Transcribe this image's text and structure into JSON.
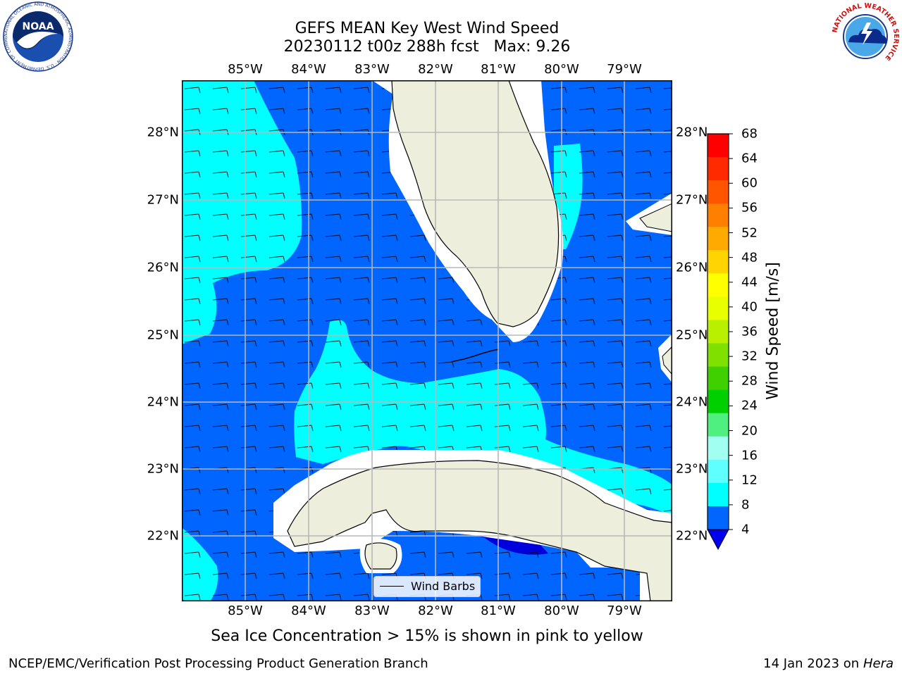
{
  "title": {
    "line1": "GEFS MEAN Key West Wind Speed",
    "line2": "20230112 t00z 288h fcst   Max: 9.26"
  },
  "map": {
    "lon_labels": [
      "85°W",
      "84°W",
      "83°W",
      "82°W",
      "81°W",
      "80°W",
      "79°W"
    ],
    "lat_labels": [
      "28°N",
      "27°N",
      "26°N",
      "25°N",
      "24°N",
      "23°N",
      "22°N"
    ],
    "legend_label": "Wind Barbs"
  },
  "colorbar": {
    "label": "Wind Speed [m/s]",
    "ticks": [
      "68",
      "64",
      "60",
      "56",
      "52",
      "48",
      "44",
      "40",
      "36",
      "32",
      "28",
      "24",
      "20",
      "16",
      "12",
      "8",
      "4"
    ],
    "colors": [
      "#ff0000",
      "#ff2a00",
      "#ff5500",
      "#ff7f00",
      "#ffaa00",
      "#ffd400",
      "#ffff00",
      "#e8ff00",
      "#b8f000",
      "#80e000",
      "#40d000",
      "#00d000",
      "#50f080",
      "#a0fff0",
      "#60ffff",
      "#00ffff",
      "#0066ff"
    ],
    "under_color": "#0000ee"
  },
  "colors": {
    "ocean_low": "#0066ff",
    "ocean_mid": "#00ffff",
    "ocean_dark": "#0000dd",
    "land": "#eeeedd"
  },
  "caption": "Sea Ice Concentration > 15% is shown in pink to yellow",
  "footer": {
    "left": "NCEP/EMC/Verification Post Processing Product Generation Branch",
    "right_prefix": "14 Jan 2023 on ",
    "right_machine": "Hera"
  },
  "logos": {
    "noaa": "NOAA",
    "noaa_ring": "NATIONAL OCEANIC AND ATMOSPHERIC ADMINISTRATION · U.S. DEPARTMENT OF COMMERCE",
    "nws_ring": "NATIONAL WEATHER SERVICE"
  }
}
